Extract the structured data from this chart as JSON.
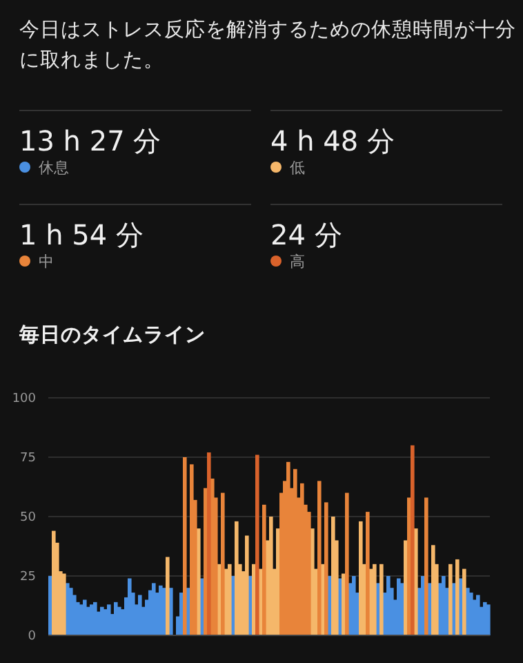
{
  "chart_data": {
    "type": "bar",
    "title": "毎日のタイムライン",
    "annotations": [
      "今日はストレス反応を解消するための休憩時間が十分に取れました。",
      "13 h 27 分",
      "4 h 48 分",
      "1 h 54 分",
      "24 分"
    ],
    "categories": [
      null,
      null,
      null,
      null,
      null,
      null,
      null,
      null,
      null,
      null,
      null,
      null,
      null,
      null,
      null,
      null,
      null,
      null,
      null,
      null,
      null,
      null,
      null,
      null,
      null,
      null,
      null,
      null,
      null,
      null,
      null,
      null,
      null,
      null,
      null,
      null,
      null,
      null,
      null,
      null,
      null,
      null,
      null,
      null,
      null,
      null,
      null,
      null,
      null,
      null,
      null,
      null,
      null,
      null,
      null,
      null,
      null,
      null,
      null,
      null,
      null,
      null,
      null,
      null,
      null,
      null,
      null,
      null,
      null,
      null,
      null,
      null,
      null,
      null,
      null,
      null,
      null,
      null,
      null,
      null,
      null,
      null,
      null,
      null,
      null,
      null,
      null,
      null,
      null,
      null,
      null,
      null,
      null,
      null,
      null,
      null,
      null,
      null,
      null,
      null,
      null,
      null,
      null,
      null,
      null,
      null,
      null,
      null,
      null,
      null,
      null,
      null,
      null,
      null,
      null,
      null,
      null,
      null,
      null,
      null,
      null,
      null,
      null,
      null,
      null,
      null,
      null,
      null
    ],
    "series": [
      {
        "name": "休息",
        "color": "#4a90e2",
        "values": [
          25,
          null,
          null,
          null,
          null,
          22,
          20,
          17,
          14,
          13,
          15,
          12,
          13,
          14,
          10,
          12,
          11,
          13,
          9,
          14,
          12,
          11,
          16,
          24,
          18,
          13,
          17,
          12,
          15,
          19,
          22,
          18,
          21,
          20,
          null,
          20,
          0,
          8,
          18,
          null,
          20,
          null,
          null,
          null,
          24,
          null,
          null,
          null,
          null,
          null,
          null,
          null,
          null,
          25,
          null,
          null,
          null,
          null,
          25,
          null,
          null,
          null,
          null,
          null,
          null,
          null,
          null,
          null,
          null,
          null,
          null,
          null,
          null,
          null,
          null,
          null,
          null,
          null,
          null,
          null,
          null,
          25,
          null,
          null,
          24,
          null,
          null,
          22,
          25,
          18,
          null,
          null,
          null,
          null,
          null,
          22,
          null,
          18,
          25,
          20,
          15,
          24,
          22,
          null,
          null,
          null,
          null,
          20,
          25,
          null,
          22,
          null,
          null,
          22,
          25,
          20,
          null,
          22,
          null,
          24,
          null,
          20,
          18,
          15,
          17,
          12,
          14,
          13
        ]
      },
      {
        "name": "低",
        "color": "#f5b76a",
        "values": [
          null,
          44,
          39,
          27,
          26,
          null,
          null,
          null,
          null,
          null,
          null,
          null,
          null,
          null,
          null,
          null,
          null,
          null,
          null,
          null,
          null,
          null,
          null,
          null,
          null,
          null,
          null,
          null,
          null,
          null,
          null,
          null,
          null,
          null,
          33,
          null,
          null,
          null,
          null,
          null,
          null,
          null,
          null,
          45,
          null,
          null,
          null,
          null,
          null,
          30,
          null,
          28,
          30,
          null,
          48,
          30,
          27,
          42,
          null,
          30,
          null,
          28,
          null,
          40,
          50,
          28,
          45,
          null,
          null,
          null,
          null,
          null,
          null,
          null,
          null,
          null,
          45,
          28,
          null,
          30,
          null,
          null,
          50,
          40,
          null,
          26,
          null,
          null,
          null,
          null,
          48,
          30,
          null,
          28,
          30,
          null,
          30,
          null,
          null,
          null,
          null,
          null,
          null,
          40,
          null,
          null,
          45,
          null,
          null,
          null,
          null,
          38,
          30,
          null,
          null,
          null,
          30,
          null,
          32,
          null,
          28,
          null,
          null,
          null,
          null,
          null,
          null,
          null
        ]
      },
      {
        "name": "中",
        "color": "#e8843a",
        "values": [
          null,
          null,
          null,
          null,
          null,
          null,
          null,
          null,
          null,
          null,
          null,
          null,
          null,
          null,
          null,
          null,
          null,
          null,
          null,
          null,
          null,
          null,
          null,
          null,
          null,
          null,
          null,
          null,
          null,
          null,
          null,
          null,
          null,
          null,
          null,
          null,
          null,
          null,
          null,
          75,
          null,
          72,
          57,
          null,
          null,
          62,
          null,
          66,
          58,
          null,
          60,
          null,
          null,
          null,
          null,
          null,
          null,
          null,
          null,
          null,
          null,
          null,
          55,
          null,
          null,
          null,
          null,
          60,
          65,
          73,
          62,
          70,
          58,
          64,
          55,
          52,
          null,
          null,
          65,
          null,
          56,
          null,
          null,
          null,
          null,
          null,
          60,
          null,
          null,
          null,
          null,
          null,
          52,
          null,
          null,
          null,
          null,
          null,
          null,
          null,
          null,
          null,
          null,
          null,
          58,
          null,
          null,
          null,
          null,
          58,
          null,
          null,
          null,
          null,
          null,
          null,
          null,
          null,
          null,
          null,
          null,
          null,
          null,
          null,
          null,
          null,
          null,
          null
        ]
      },
      {
        "name": "高",
        "color": "#d9622b",
        "values": [
          null,
          null,
          null,
          null,
          null,
          null,
          null,
          null,
          null,
          null,
          null,
          null,
          null,
          null,
          null,
          null,
          null,
          null,
          null,
          null,
          null,
          null,
          null,
          null,
          null,
          null,
          null,
          null,
          null,
          null,
          null,
          null,
          null,
          null,
          null,
          null,
          null,
          null,
          null,
          null,
          null,
          null,
          null,
          null,
          null,
          null,
          77,
          null,
          null,
          null,
          null,
          null,
          null,
          null,
          null,
          null,
          null,
          null,
          null,
          null,
          76,
          null,
          null,
          null,
          null,
          null,
          null,
          null,
          null,
          null,
          null,
          null,
          null,
          null,
          null,
          null,
          null,
          null,
          null,
          null,
          null,
          null,
          null,
          null,
          null,
          null,
          null,
          null,
          null,
          null,
          null,
          null,
          null,
          null,
          null,
          null,
          null,
          null,
          null,
          null,
          null,
          null,
          null,
          null,
          null,
          80,
          null,
          null,
          null,
          null,
          null,
          null,
          null,
          null,
          null,
          null,
          null,
          null,
          null,
          null,
          null,
          null,
          null,
          null,
          null,
          null,
          null,
          null
        ]
      }
    ],
    "ylim": [
      0,
      100
    ],
    "yticks": [
      0,
      25,
      50,
      75,
      100
    ],
    "grid": "y",
    "legend": "top"
  }
}
